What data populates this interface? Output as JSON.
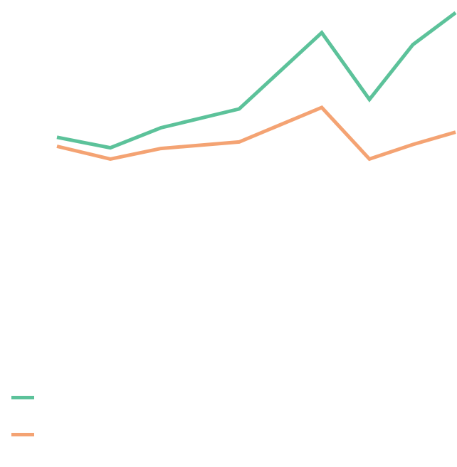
{
  "chart_data": {
    "type": "line",
    "title": "",
    "xlabel": "",
    "ylabel": "",
    "grid": false,
    "legend_position": "bottom-left",
    "x": [
      1,
      2,
      3,
      4,
      5,
      6,
      7,
      8
    ],
    "ylim": [
      0,
      100
    ],
    "series": [
      {
        "name": "",
        "color": "#5cc29a",
        "values": [
          62.2,
          59.3,
          64.8,
          70.0,
          91.0,
          72.6,
          87.7,
          96.5
        ]
      },
      {
        "name": "",
        "color": "#f4a373",
        "values": [
          59.7,
          56.2,
          59.1,
          60.9,
          70.4,
          56.2,
          60.2,
          63.6
        ]
      }
    ]
  }
}
